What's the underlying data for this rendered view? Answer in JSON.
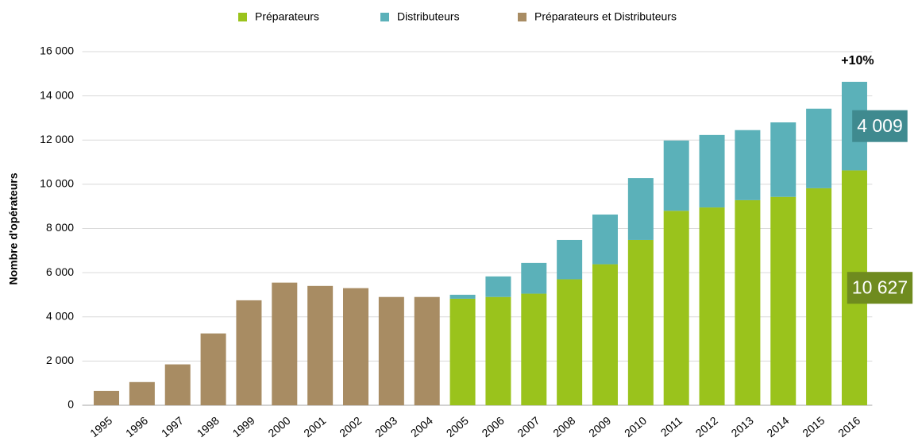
{
  "chart_data": {
    "type": "bar",
    "stacked": true,
    "y_label": "Nombre d'opérateurs",
    "annotation": "+10%",
    "categories": [
      "1995",
      "1996",
      "1997",
      "1998",
      "1999",
      "2000",
      "2001",
      "2002",
      "2003",
      "2004",
      "2005",
      "2006",
      "2007",
      "2008",
      "2009",
      "2010",
      "2011",
      "2012",
      "2013",
      "2014",
      "2015",
      "2016"
    ],
    "series": [
      {
        "name": "Préparateurs",
        "color": "#9ac31c",
        "label_color": "#6f8b1f",
        "values": [
          null,
          null,
          null,
          null,
          null,
          null,
          null,
          null,
          null,
          null,
          4820,
          4900,
          5050,
          5700,
          6380,
          7480,
          8800,
          8950,
          9280,
          9430,
          9820,
          10627
        ],
        "value_labels": [
          null,
          null,
          null,
          null,
          null,
          null,
          null,
          null,
          null,
          null,
          null,
          null,
          null,
          null,
          null,
          null,
          null,
          null,
          null,
          null,
          null,
          "10 627"
        ]
      },
      {
        "name": "Distributeurs",
        "color": "#5bb1b9",
        "label_color": "#3f8a8f",
        "values": [
          null,
          null,
          null,
          null,
          null,
          null,
          null,
          null,
          null,
          null,
          180,
          930,
          1390,
          1780,
          2250,
          2800,
          3180,
          3280,
          3170,
          3370,
          3600,
          4009
        ],
        "value_labels": [
          null,
          null,
          null,
          null,
          null,
          null,
          null,
          null,
          null,
          null,
          null,
          null,
          null,
          null,
          null,
          null,
          null,
          null,
          null,
          null,
          null,
          "4 009"
        ]
      },
      {
        "name": "Préparateurs et Distributeurs",
        "color": "#a88c63",
        "values": [
          650,
          1050,
          1850,
          3250,
          4750,
          5550,
          5400,
          5300,
          4900,
          4900,
          null,
          null,
          null,
          null,
          null,
          null,
          null,
          null,
          null,
          null,
          null,
          null
        ]
      }
    ],
    "ylim": [
      0,
      16000
    ],
    "yticks": [
      0,
      {
        "value": 2000,
        "label": "2 000"
      },
      {
        "value": 4000,
        "label": "4 000"
      },
      {
        "value": 6000,
        "label": "6 000"
      },
      {
        "value": 8000,
        "label": "8 000"
      },
      {
        "value": 10000,
        "label": "10 000"
      },
      {
        "value": 12000,
        "label": "12 000"
      },
      {
        "value": 14000,
        "label": "14 000"
      },
      {
        "value": 16000,
        "label": "16 000"
      }
    ],
    "grid": true,
    "legend": "top"
  }
}
